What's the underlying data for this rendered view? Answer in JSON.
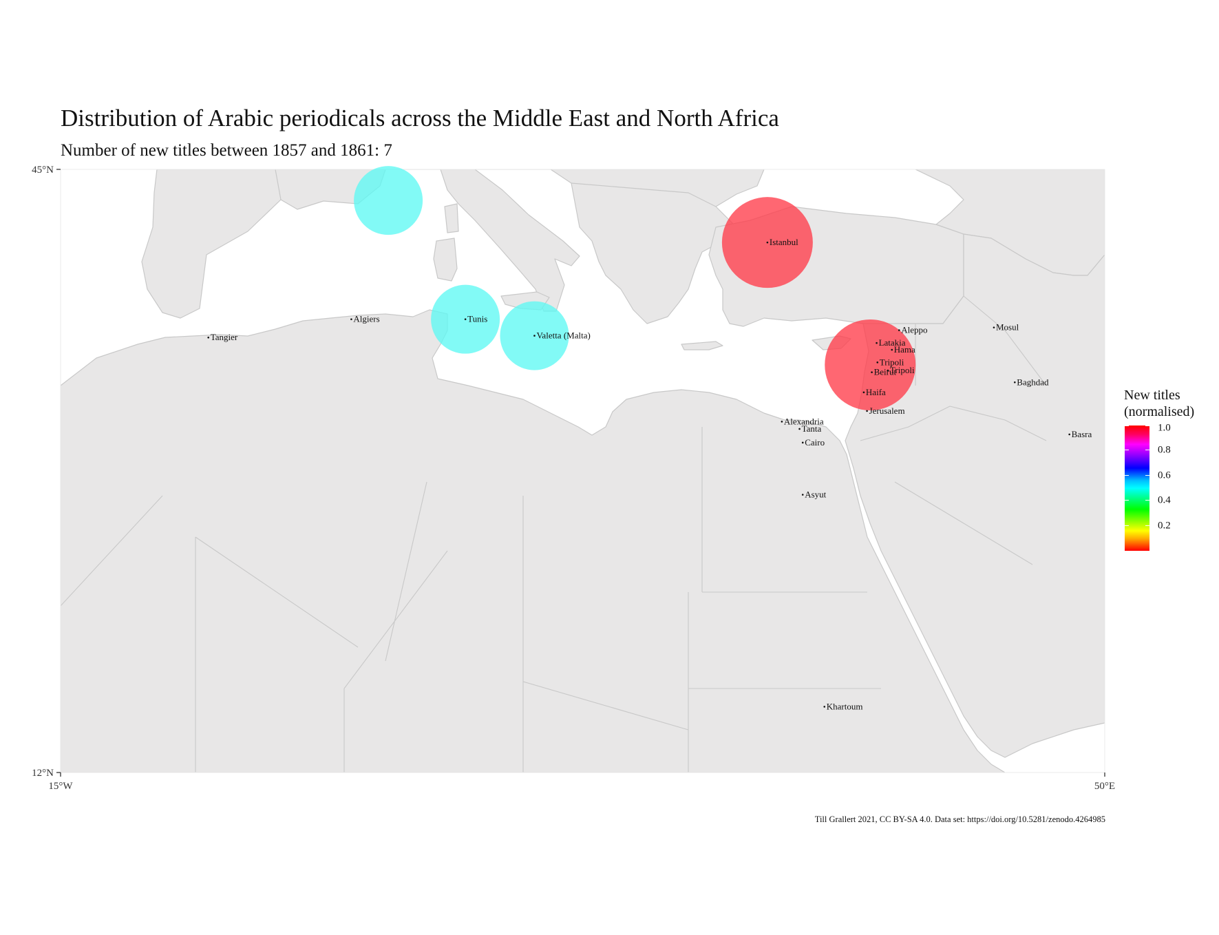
{
  "title": "Distribution of Arabic periodicals across the Middle East and North Africa",
  "subtitle": "Number of new titles between 1857 and 1861: 7",
  "caption": "Till Grallert 2021, CC BY-SA 4.0. Data set: https://doi.org/10.5281/zenodo.4264985",
  "colors": {
    "land": "#e8e7e7",
    "border": "#c8c8c8",
    "sea": "#ffffff",
    "high": "#ff3c4a",
    "low": "#5ff8f4"
  },
  "axes": {
    "lat_ticks": [
      "45°N",
      "12°N"
    ],
    "lon_ticks": [
      "15°W",
      "50°E"
    ],
    "lon_range": [
      -15,
      50
    ],
    "lat_range": [
      12,
      45
    ]
  },
  "legend": {
    "title_line1": "New titles",
    "title_line2": "(normalised)",
    "ticks": [
      {
        "value": 1.0,
        "label": "1.0"
      },
      {
        "value": 0.8,
        "label": "0.8"
      },
      {
        "value": 0.6,
        "label": "0.6"
      },
      {
        "value": 0.4,
        "label": "0.4"
      },
      {
        "value": 0.2,
        "label": "0.2"
      }
    ]
  },
  "chart_data": {
    "type": "scatter",
    "markers": [
      {
        "lon": 5.4,
        "lat": 43.3,
        "value": 0.5,
        "color": "#5ff8f4"
      },
      {
        "lon": 10.2,
        "lat": 36.8,
        "value": 0.5,
        "color": "#5ff8f4"
      },
      {
        "lon": 14.5,
        "lat": 35.9,
        "value": 0.5,
        "color": "#5ff8f4"
      },
      {
        "lon": 29.0,
        "lat": 41.0,
        "value": 1.0,
        "color": "#ff3c4a"
      },
      {
        "lon": 35.4,
        "lat": 34.3,
        "value": 1.0,
        "color": "#ff3c4a"
      }
    ],
    "cities": [
      {
        "name": "Tangier",
        "lon": -5.8,
        "lat": 35.8
      },
      {
        "name": "Algiers",
        "lon": 3.1,
        "lat": 36.8
      },
      {
        "name": "Tunis",
        "lon": 10.2,
        "lat": 36.8
      },
      {
        "name": "Valetta (Malta)",
        "lon": 14.5,
        "lat": 35.9
      },
      {
        "name": "Istanbul",
        "lon": 29.0,
        "lat": 41.0
      },
      {
        "name": "Aleppo",
        "lon": 37.2,
        "lat": 36.2
      },
      {
        "name": "Latakia",
        "lon": 35.8,
        "lat": 35.5
      },
      {
        "name": "Hama",
        "lon": 36.75,
        "lat": 35.13
      },
      {
        "name": "Tripoli",
        "lon": 35.85,
        "lat": 34.44
      },
      {
        "name": "Beirut",
        "lon": 35.5,
        "lat": 33.9
      },
      {
        "name": "Tripoli",
        "lon": 36.5,
        "lat": 34.0
      },
      {
        "name": "Haifa",
        "lon": 35.0,
        "lat": 32.8
      },
      {
        "name": "Jerusalem",
        "lon": 35.2,
        "lat": 31.78
      },
      {
        "name": "Alexandria",
        "lon": 29.9,
        "lat": 31.2
      },
      {
        "name": "Tanta",
        "lon": 31.0,
        "lat": 30.8
      },
      {
        "name": "Cairo",
        "lon": 31.2,
        "lat": 30.05
      },
      {
        "name": "Asyut",
        "lon": 31.2,
        "lat": 27.2
      },
      {
        "name": "Khartoum",
        "lon": 32.55,
        "lat": 15.6
      },
      {
        "name": "Mosul",
        "lon": 43.1,
        "lat": 36.35
      },
      {
        "name": "Baghdad",
        "lon": 44.4,
        "lat": 33.35
      },
      {
        "name": "Basra",
        "lon": 47.8,
        "lat": 30.5
      }
    ]
  }
}
